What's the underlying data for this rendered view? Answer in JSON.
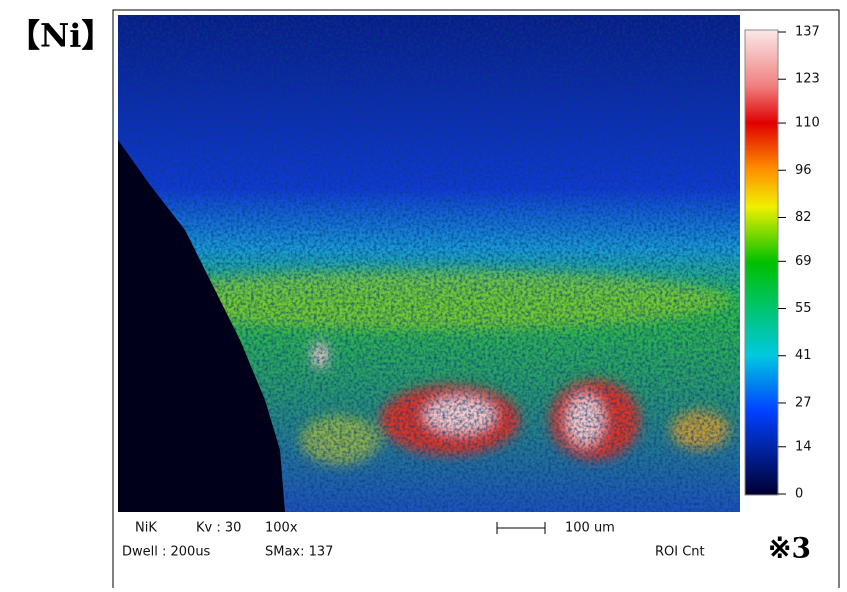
{
  "label": "【Ni】",
  "colorbar": {
    "ticks": [
      0,
      14,
      27,
      41,
      55,
      69,
      82,
      96,
      110,
      123,
      137
    ]
  },
  "info": {
    "element": "NiK",
    "kv": "Kv : 30",
    "magnification": "100x",
    "dwell": "Dwell : 200us",
    "smax": "SMax: 137",
    "scale": "100 um",
    "roi": "ROI Cnt"
  },
  "note": "※3"
}
